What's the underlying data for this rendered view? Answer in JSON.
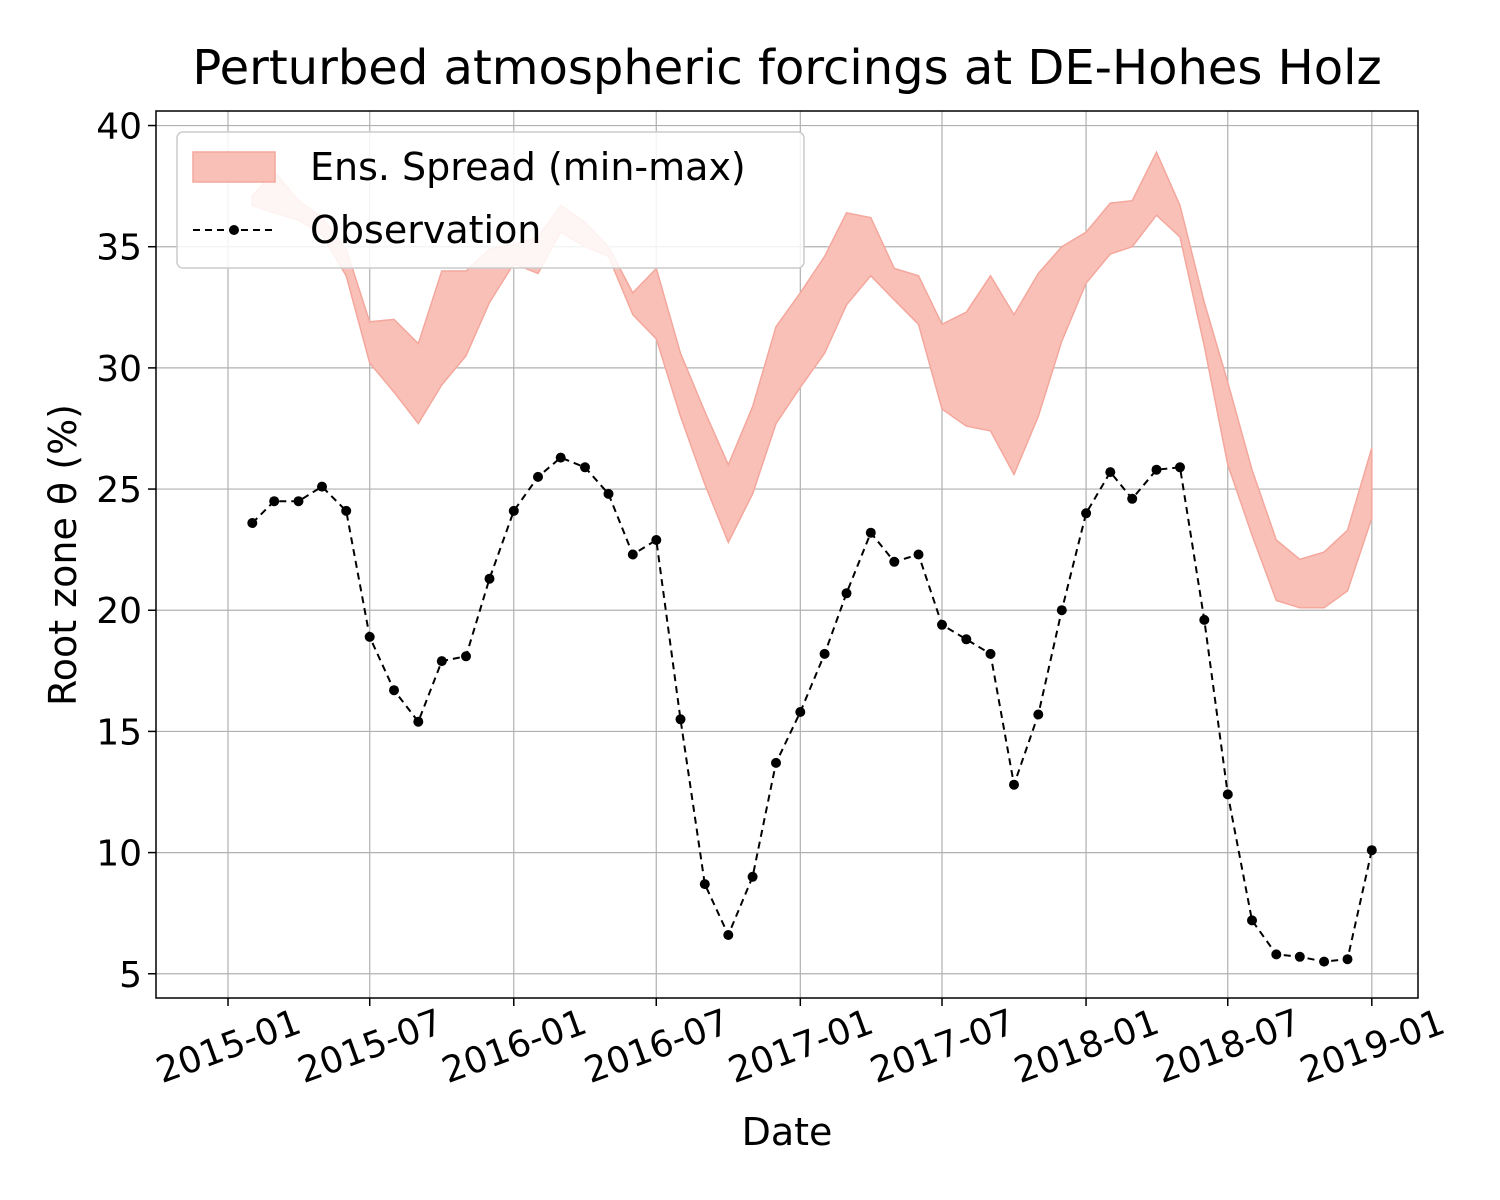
{
  "chart_data": {
    "type": "line",
    "title": "Perturbed atmospheric forcings at DE-Hohes Holz",
    "xlabel": "Date",
    "ylabel": "Root zone θ  (%)",
    "xlim": [
      "2014-10-01",
      "2019-03-01"
    ],
    "ylim": [
      4,
      40.6
    ],
    "x_ticks": [
      "2015-01",
      "2015-07",
      "2016-01",
      "2016-07",
      "2017-01",
      "2017-07",
      "2018-01",
      "2018-07",
      "2019-01"
    ],
    "y_ticks": [
      5,
      10,
      15,
      20,
      25,
      30,
      35,
      40
    ],
    "grid": true,
    "legend": "top-left",
    "colors": {
      "band": "#f9c0b8",
      "band_edge": "#f4a79c",
      "observation": "#000000"
    },
    "series": [
      {
        "name": "Ens. Spread (min-max)",
        "kind": "band",
        "x": [
          "2015-02-01",
          "2015-03-01",
          "2015-04-01",
          "2015-05-01",
          "2015-06-01",
          "2015-07-01",
          "2015-08-01",
          "2015-09-01",
          "2015-10-01",
          "2015-11-01",
          "2015-12-01",
          "2016-01-01",
          "2016-02-01",
          "2016-03-01",
          "2016-04-01",
          "2016-05-01",
          "2016-06-01",
          "2016-07-01",
          "2016-08-01",
          "2016-09-01",
          "2016-10-01",
          "2016-11-01",
          "2016-12-01",
          "2017-01-01",
          "2017-02-01",
          "2017-03-01",
          "2017-04-01",
          "2017-05-01",
          "2017-06-01",
          "2017-07-01",
          "2017-08-01",
          "2017-09-01",
          "2017-10-01",
          "2017-11-01",
          "2017-12-01",
          "2018-01-01",
          "2018-02-01",
          "2018-03-01",
          "2018-04-01",
          "2018-05-01",
          "2018-06-01",
          "2018-07-01",
          "2018-08-01",
          "2018-09-01",
          "2018-10-01",
          "2018-11-01",
          "2018-12-01",
          "2019-01-01"
        ],
        "lower": [
          36.7,
          36.4,
          36.1,
          35.5,
          33.8,
          30.2,
          29.0,
          27.7,
          29.3,
          30.5,
          32.7,
          34.3,
          33.9,
          35.6,
          35.0,
          34.6,
          32.2,
          31.2,
          28.0,
          25.2,
          22.8,
          24.8,
          27.7,
          29.2,
          30.6,
          32.6,
          33.8,
          32.8,
          31.8,
          28.3,
          27.6,
          27.4,
          25.6,
          28.0,
          31.1,
          33.5,
          34.7,
          35.0,
          36.3,
          35.4,
          30.9,
          26.0,
          23.1,
          20.4,
          20.1,
          20.1,
          20.8,
          23.8
        ],
        "upper": [
          37.1,
          38.1,
          36.9,
          36.2,
          34.9,
          31.9,
          32.0,
          31.0,
          34.0,
          34.0,
          34.9,
          35.1,
          35.4,
          36.7,
          36.0,
          35.0,
          33.1,
          34.1,
          30.6,
          28.2,
          26.0,
          28.4,
          31.7,
          33.1,
          34.6,
          36.4,
          36.2,
          34.1,
          33.8,
          31.8,
          32.3,
          33.8,
          32.2,
          33.9,
          35.0,
          35.6,
          36.8,
          36.9,
          38.9,
          36.7,
          32.7,
          29.4,
          25.8,
          22.9,
          22.1,
          22.4,
          23.3,
          26.7
        ]
      },
      {
        "name": "Observation",
        "kind": "line",
        "x": [
          "2015-02-01",
          "2015-03-01",
          "2015-04-01",
          "2015-05-01",
          "2015-06-01",
          "2015-07-01",
          "2015-08-01",
          "2015-09-01",
          "2015-10-01",
          "2015-11-01",
          "2015-12-01",
          "2016-01-01",
          "2016-02-01",
          "2016-03-01",
          "2016-04-01",
          "2016-05-01",
          "2016-06-01",
          "2016-07-01",
          "2016-08-01",
          "2016-09-01",
          "2016-10-01",
          "2016-11-01",
          "2016-12-01",
          "2017-01-01",
          "2017-02-01",
          "2017-03-01",
          "2017-04-01",
          "2017-05-01",
          "2017-06-01",
          "2017-07-01",
          "2017-08-01",
          "2017-09-01",
          "2017-10-01",
          "2017-11-01",
          "2017-12-01",
          "2018-01-01",
          "2018-02-01",
          "2018-03-01",
          "2018-04-01",
          "2018-05-01",
          "2018-06-01",
          "2018-07-01",
          "2018-08-01",
          "2018-09-01",
          "2018-10-01",
          "2018-11-01",
          "2018-12-01",
          "2019-01-01"
        ],
        "values": [
          23.6,
          24.5,
          24.5,
          25.1,
          24.1,
          18.9,
          16.7,
          15.4,
          17.9,
          18.1,
          21.3,
          24.1,
          25.5,
          26.3,
          25.9,
          24.8,
          22.3,
          22.9,
          15.5,
          8.7,
          6.6,
          9.0,
          13.7,
          15.8,
          18.2,
          20.7,
          23.2,
          22.0,
          22.3,
          19.4,
          18.8,
          18.2,
          12.8,
          15.7,
          20.0,
          24.0,
          25.7,
          24.6,
          25.8,
          25.9,
          19.6,
          12.4,
          7.2,
          5.8,
          5.7,
          5.5,
          5.6,
          10.1
        ]
      }
    ]
  }
}
